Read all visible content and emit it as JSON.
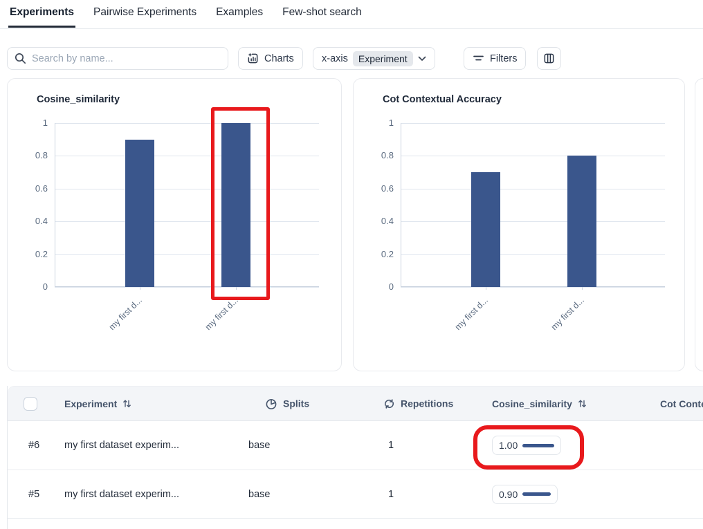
{
  "tabs": [
    {
      "label": "Experiments",
      "active": true
    },
    {
      "label": "Pairwise Experiments",
      "active": false
    },
    {
      "label": "Examples",
      "active": false
    },
    {
      "label": "Few-shot search",
      "active": false
    }
  ],
  "toolbar": {
    "search_placeholder": "Search by name...",
    "charts_label": "Charts",
    "xaxis_label": "x-axis",
    "xaxis_value": "Experiment",
    "filters_label": "Filters"
  },
  "colors": {
    "bar": "#3a568c",
    "annotation": "#e8191c"
  },
  "chart_data": [
    {
      "type": "bar",
      "title": "Cosine_similarity",
      "categories": [
        "my first d...",
        "my first d..."
      ],
      "values": [
        0.9,
        1.0
      ],
      "ylim": [
        0,
        1
      ],
      "yticks": [
        0,
        0.2,
        0.4,
        0.6,
        0.8,
        1
      ],
      "grid": true,
      "xlabel": "",
      "ylabel": "",
      "annotation": "red box highlighting second bar"
    },
    {
      "type": "bar",
      "title": "Cot Contextual Accuracy",
      "categories": [
        "my first d...",
        "my first d..."
      ],
      "values": [
        0.7,
        0.8
      ],
      "ylim": [
        0,
        1
      ],
      "yticks": [
        0,
        0.2,
        0.4,
        0.6,
        0.8,
        1
      ],
      "grid": true,
      "xlabel": "",
      "ylabel": ""
    }
  ],
  "table": {
    "columns": [
      {
        "key": "id",
        "label": "",
        "checkbox": true
      },
      {
        "key": "experiment",
        "label": "Experiment",
        "sortable": true
      },
      {
        "key": "splits",
        "label": "Splits",
        "icon": "pie-chart-icon"
      },
      {
        "key": "repetitions",
        "label": "Repetitions",
        "icon": "repeat-icon"
      },
      {
        "key": "cosine_similarity",
        "label": "Cosine_similarity",
        "sortable": true
      },
      {
        "key": "cot_contextual_accuracy",
        "label": "Cot Contextual Accuracy"
      }
    ],
    "rows": [
      {
        "id": "#6",
        "experiment": "my first dataset experim...",
        "splits": "base",
        "repetitions": "1",
        "cosine_value": "1.00",
        "cosine_num": 1.0,
        "annotated": true
      },
      {
        "id": "#5",
        "experiment": "my first dataset experim...",
        "splits": "base",
        "repetitions": "1",
        "cosine_value": "0.90",
        "cosine_num": 0.9,
        "annotated": false
      }
    ]
  }
}
